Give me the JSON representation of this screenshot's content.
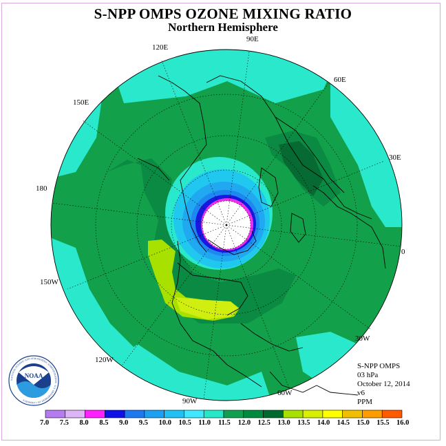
{
  "header": {
    "title": "S-NPP OMPS OZONE MIXING RATIO",
    "subtitle": "Northern Hemisphere"
  },
  "map": {
    "projection": "north-polar-stereographic",
    "longitude_labels": [
      "90E",
      "60E",
      "30E",
      "0",
      "30W",
      "60W",
      "90W",
      "120W",
      "150W",
      "180",
      "150E",
      "120E"
    ]
  },
  "info": {
    "instrument": "S-NPP OMPS",
    "level": "03 hPa",
    "date": "October 12, 2014",
    "version": "v6",
    "units": "PPM"
  },
  "colorbar": {
    "ticks": [
      "7.0",
      "7.5",
      "8.0",
      "8.5",
      "9.0",
      "9.5",
      "10.0",
      "10.5",
      "11.0",
      "11.5",
      "12.0",
      "12.5",
      "13.0",
      "13.5",
      "14.0",
      "14.5",
      "15.0",
      "15.5",
      "16.0"
    ],
    "colors": [
      "#b57cf0",
      "#ddb4f5",
      "#ff20ff",
      "#1010e8",
      "#1e78f0",
      "#1ea0f0",
      "#20c0f2",
      "#40e8ff",
      "#26e8c8",
      "#10a050",
      "#008a40",
      "#006a2e",
      "#a8e000",
      "#d8f000",
      "#ffff00",
      "#f0c000",
      "#ff9c00",
      "#ff5a00",
      "#ff0000",
      "#a00030",
      "#8a5a3a"
    ]
  },
  "logo": {
    "text": "NOAA",
    "ring_text": "NATIONAL OCEANIC AND ATMOSPHERIC ADMINISTRATION · U.S. DEPARTMENT OF COMMERCE"
  }
}
